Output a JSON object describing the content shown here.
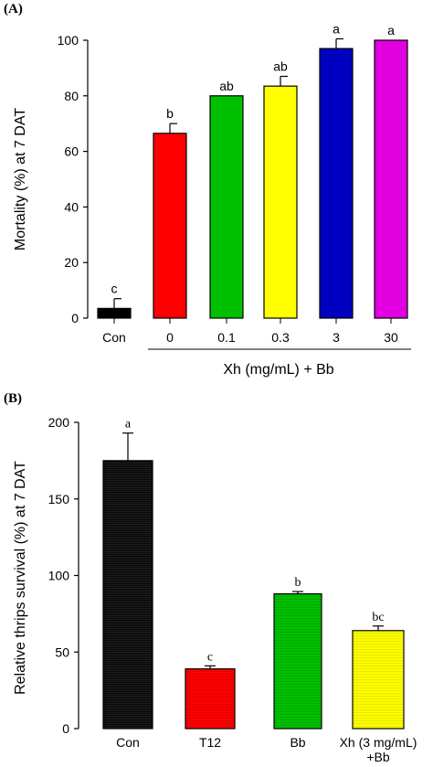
{
  "chart_data": [
    {
      "panel_label": "(A)",
      "type": "bar",
      "categories": [
        "Con",
        "0",
        "0.1",
        "0.3",
        "3",
        "30"
      ],
      "values": [
        3.5,
        66.5,
        80,
        83.5,
        97,
        100
      ],
      "errors": [
        3.5,
        3.5,
        0,
        3.5,
        3.5,
        0
      ],
      "letters": [
        "c",
        "b",
        "ab",
        "ab",
        "a",
        "a"
      ],
      "colors": [
        "#000000",
        "#ff0000",
        "#00c000",
        "#ffff00",
        "#0000c0",
        "#e000e0"
      ],
      "xlabel": "Xh (mg/mL) + Bb",
      "ylabel": "Mortality (%) at 7 DAT",
      "ylim": [
        0,
        100
      ],
      "yticks": [
        "0",
        "20",
        "40",
        "60",
        "80",
        "100"
      ],
      "grid": false
    },
    {
      "panel_label": "(B)",
      "type": "bar",
      "categories": [
        "Con",
        "T12",
        "Bb",
        "Xh (3 mg/mL)\n+Bb"
      ],
      "values": [
        175,
        39,
        88,
        64
      ],
      "errors": [
        18,
        2,
        1.5,
        3
      ],
      "letters": [
        "a",
        "c",
        "b",
        "bc"
      ],
      "colors": [
        "#000000",
        "#ff0000",
        "#00c000",
        "#ffff00"
      ],
      "xlabel": "",
      "ylabel": "Relative thrips survival (%) at 7 DAT",
      "ylim": [
        0,
        200
      ],
      "yticks": [
        "0",
        "50",
        "100",
        "150",
        "200"
      ],
      "grid": false
    }
  ]
}
